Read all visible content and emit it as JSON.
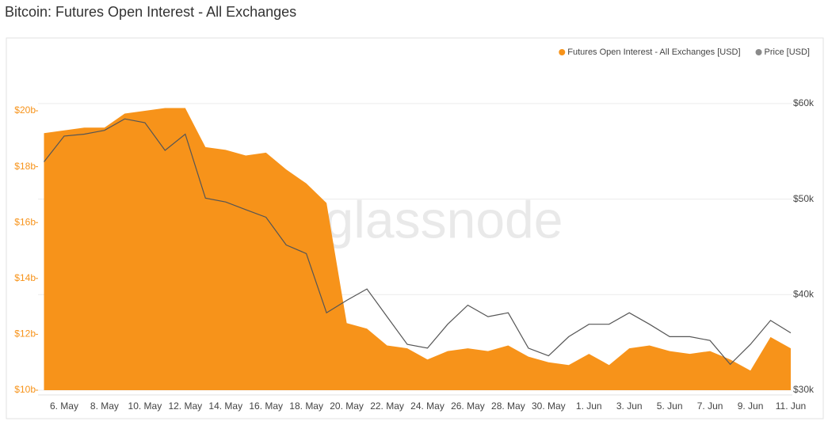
{
  "chart_data": {
    "type": "area",
    "title": "Bitcoin: Futures Open Interest - All Exchanges",
    "watermark": "glassnode",
    "legend": "top-right",
    "grid": true,
    "categories": [
      null,
      "6. May",
      null,
      "8. May",
      null,
      "10. May",
      null,
      "12. May",
      null,
      "14. May",
      null,
      "16. May",
      null,
      "18. May",
      null,
      "20. May",
      null,
      "22. May",
      null,
      "24. May",
      null,
      "26. May",
      null,
      "28. May",
      null,
      "30. May",
      null,
      "1. Jun",
      null,
      "3. Jun",
      null,
      "5. Jun",
      null,
      "7. Jun",
      null,
      "9. Jun",
      null,
      "11. Jun"
    ],
    "ylim": [
      10000000000.0,
      21000000000.0
    ],
    "yticks": [
      {
        "value": 10000000000.0,
        "label": "$10b"
      },
      {
        "value": 12000000000.0,
        "label": "$12b"
      },
      {
        "value": 14000000000.0,
        "label": "$14b"
      },
      {
        "value": 16000000000.0,
        "label": "$16b"
      },
      {
        "value": 18000000000.0,
        "label": "$18b"
      },
      {
        "value": 20000000000.0,
        "label": "$20b"
      }
    ],
    "y2lim": [
      30000,
      62170
    ],
    "y2ticks": [
      {
        "value": 30000,
        "label": "$30k"
      },
      {
        "value": 40000,
        "label": "$40k"
      },
      {
        "value": 50000,
        "label": "$50k"
      },
      {
        "value": 60000,
        "label": "$60k"
      }
    ],
    "series": [
      {
        "name": "Futures Open Interest - All Exchanges [USD]",
        "type": "area",
        "color": "#f7931a",
        "values": [
          19200000000.0,
          19300000000.0,
          19400000000.0,
          19400000000.0,
          19900000000.0,
          20000000000.0,
          20100000000.0,
          20100000000.0,
          18700000000.0,
          18600000000.0,
          18400000000.0,
          18500000000.0,
          17900000000.0,
          17400000000.0,
          16700000000.0,
          12400000000.0,
          12200000000.0,
          11600000000.0,
          11500000000.0,
          11100000000.0,
          11400000000.0,
          11500000000.0,
          11400000000.0,
          11600000000.0,
          11200000000.0,
          11000000000.0,
          10900000000.0,
          11300000000.0,
          10900000000.0,
          11500000000.0,
          11600000000.0,
          11400000000.0,
          11300000000.0,
          11400000000.0,
          11100000000.0,
          10700000000.0,
          11900000000.0,
          11500000000.0
        ]
      },
      {
        "name": "Price [USD]",
        "type": "line",
        "axis": "y2",
        "color": "#555555",
        "legend_color": "#8a8a8a",
        "values": [
          53900,
          56600,
          56800,
          57200,
          58400,
          58000,
          55100,
          56800,
          50100,
          49700,
          48900,
          48100,
          45200,
          44300,
          38100,
          39400,
          40600,
          37700,
          34800,
          34400,
          36900,
          38900,
          37700,
          38100,
          34400,
          33600,
          35600,
          36900,
          36900,
          38100,
          36900,
          35600,
          35600,
          35200,
          32700,
          34800,
          37300,
          36000
        ]
      }
    ]
  }
}
